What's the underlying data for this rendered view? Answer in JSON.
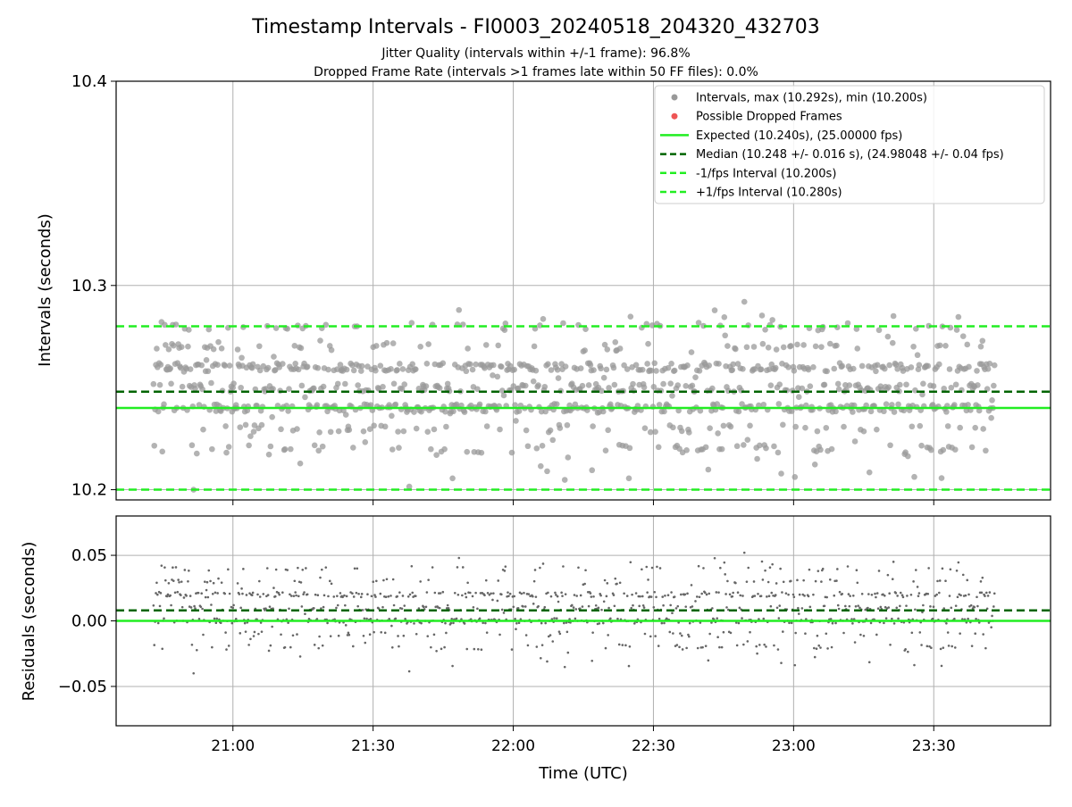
{
  "title": "Timestamp Intervals - FI0003_20240518_204320_432703",
  "subtitle_jitter": "Jitter Quality (intervals within +/-1 frame): 96.8%",
  "subtitle_dropped": "Dropped Frame Rate (intervals >1 frames late within 50 FF files): 0.0%",
  "colors": {
    "intervals": "#999999",
    "residuals": "#666666",
    "dropped": "#ee5555",
    "expected": "#22ee22",
    "median": "#006400",
    "fps_interval": "#22ee22",
    "grid": "#b0b0b0"
  },
  "chart_data": [
    {
      "type": "scatter",
      "panel": "intervals",
      "ylabel": "Intervals (seconds)",
      "xlabel": "",
      "ylim": [
        10.195,
        10.4
      ],
      "yticks": [
        "10.2",
        "10.3",
        "10.4"
      ],
      "ytick_values": [
        10.2,
        10.3,
        10.4
      ],
      "xlim": [
        "20:35",
        "23:55"
      ],
      "xticks": [
        "21:00",
        "21:30",
        "22:00",
        "22:30",
        "23:00",
        "23:30"
      ],
      "grid": true,
      "legend_position": "top-right",
      "x_start": "20:43",
      "x_end": "23:43",
      "max": 10.292,
      "min": 10.2,
      "expected": 10.24,
      "median": 10.248,
      "lower_fps_interval": 10.2,
      "upper_fps_interval": 10.28,
      "series": [
        {
          "name": "Intervals, max (10.292s), min (10.200s)",
          "kind": "points"
        },
        {
          "name": "Possible Dropped Frames",
          "kind": "points",
          "values": []
        },
        {
          "name": "Expected (10.240s), (25.00000 fps)",
          "kind": "hline",
          "value": 10.24
        },
        {
          "name": "Median (10.248 +/- 0.016 s), (24.98048 +/- 0.04 fps)",
          "kind": "hline",
          "value": 10.248
        },
        {
          "name": "-1/fps Interval (10.200s)",
          "kind": "hline",
          "value": 10.2
        },
        {
          "name": "+1/fps Interval (10.280s)",
          "kind": "hline",
          "value": 10.28
        }
      ]
    },
    {
      "type": "scatter",
      "panel": "residuals",
      "ylabel": "Residuals (seconds)",
      "xlabel": "Time (UTC)",
      "ylim": [
        -0.08,
        0.08
      ],
      "yticks": [
        "0.05",
        "0.00",
        "−0.05"
      ],
      "ytick_values": [
        0.05,
        0.0,
        -0.05
      ],
      "xlim": [
        "20:35",
        "23:55"
      ],
      "xticks": [
        "21:00",
        "21:30",
        "22:00",
        "22:30",
        "23:00",
        "23:30"
      ],
      "grid": true,
      "median_offset": 0.008,
      "zero_line": 0.0
    }
  ]
}
